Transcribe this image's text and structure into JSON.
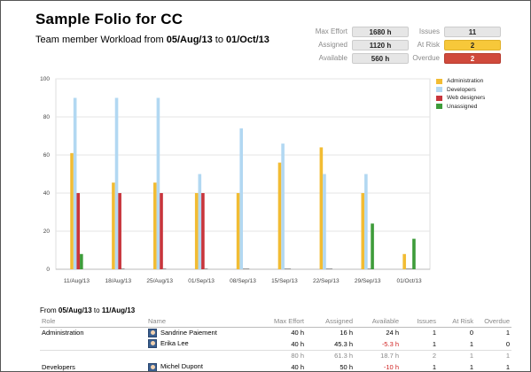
{
  "header": {
    "title": "Sample Folio for CC",
    "subtitle_prefix": "Team member Workload from ",
    "date_from": "05/Aug/13",
    "subtitle_mid": " to ",
    "date_to": "01/Oct/13"
  },
  "stats": {
    "max_effort_label": "Max Effort",
    "max_effort": "1680 h",
    "assigned_label": "Assigned",
    "assigned": "1120 h",
    "available_label": "Available",
    "available": "560 h",
    "issues_label": "Issues",
    "issues": "11",
    "at_risk_label": "At Risk",
    "at_risk": "2",
    "overdue_label": "Overdue",
    "overdue": "2"
  },
  "colors": {
    "administration": "#f2bc33",
    "developers": "#b2d8f2",
    "web_designers": "#c8353c",
    "unassigned": "#3e9c3a",
    "at_risk": "#f7c83a",
    "overdue": "#d04a3c"
  },
  "chart_data": {
    "type": "bar",
    "categories": [
      "11/Aug/13",
      "18/Aug/13",
      "25/Aug/13",
      "01/Sep/13",
      "08/Sep/13",
      "15/Sep/13",
      "22/Sep/13",
      "29/Sep/13",
      "01/Oct/13"
    ],
    "series": [
      {
        "name": "Administration",
        "values": [
          61,
          45.5,
          45.5,
          40,
          40,
          56,
          64,
          40,
          8
        ]
      },
      {
        "name": "Developers",
        "values": [
          90,
          90,
          90,
          50,
          74,
          66,
          50,
          50,
          0
        ]
      },
      {
        "name": "Web designers",
        "values": [
          40,
          40,
          40,
          40,
          0,
          0,
          0,
          0,
          0
        ]
      },
      {
        "name": "Unassigned",
        "values": [
          8,
          0,
          0,
          0,
          0,
          0,
          0,
          24,
          16
        ]
      }
    ],
    "yticks": [
      "0",
      "20",
      "40",
      "60",
      "80",
      "100"
    ],
    "ylim": [
      0,
      100
    ],
    "grid": true,
    "legend_position": "top-right"
  },
  "table": {
    "range_prefix": "From ",
    "range_from": "05/Aug/13",
    "range_mid": " to ",
    "range_to": "11/Aug/13",
    "headers": {
      "role": "Role",
      "name": "Name",
      "max_effort": "Max Effort",
      "assigned": "Assigned",
      "available": "Available",
      "issues": "Issues",
      "at_risk": "At Risk",
      "overdue": "Overdue"
    },
    "rows": [
      {
        "role": "Administration",
        "name": "Sandrine Paiement",
        "max_effort": "40 h",
        "assigned": "16 h",
        "available": "24 h",
        "issues": "1",
        "at_risk": "0",
        "overdue": "1"
      },
      {
        "role": "",
        "name": "Erika Lee",
        "max_effort": "40 h",
        "assigned": "45.3 h",
        "available": "-5.3 h",
        "issues": "1",
        "at_risk": "1",
        "overdue": "0"
      },
      {
        "role": "",
        "name": "",
        "max_effort": "80 h",
        "assigned": "61.3 h",
        "available": "18.7 h",
        "issues": "2",
        "at_risk": "1",
        "overdue": "1"
      },
      {
        "role": "Developers",
        "name": "Michel Dupont",
        "max_effort": "40 h",
        "assigned": "50 h",
        "available": "-10 h",
        "issues": "1",
        "at_risk": "1",
        "overdue": "1"
      }
    ]
  }
}
